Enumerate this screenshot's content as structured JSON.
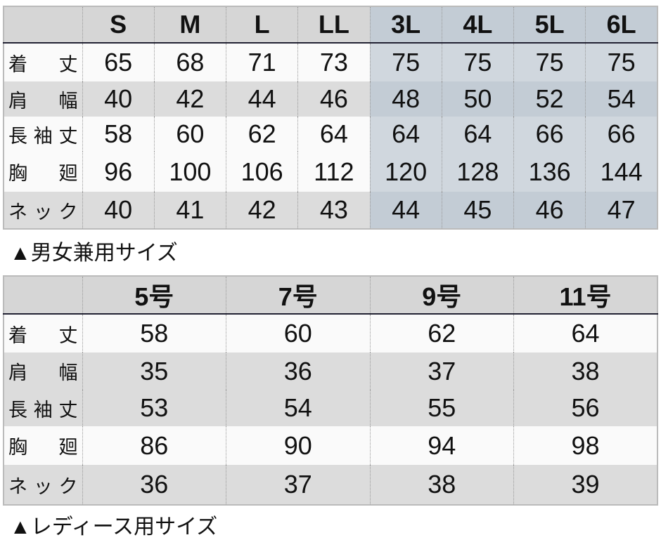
{
  "unisex": {
    "caption": "▲男女兼用サイズ",
    "sizes": [
      "S",
      "M",
      "L",
      "LL",
      "3L",
      "4L",
      "5L",
      "6L"
    ],
    "rows": [
      {
        "label": "着　丈",
        "values": [
          "65",
          "68",
          "71",
          "73",
          "75",
          "75",
          "75",
          "75"
        ]
      },
      {
        "label": "肩　幅",
        "values": [
          "40",
          "42",
          "44",
          "46",
          "48",
          "50",
          "52",
          "54"
        ]
      },
      {
        "label": "長袖丈",
        "values": [
          "58",
          "60",
          "62",
          "64",
          "64",
          "64",
          "66",
          "66"
        ]
      },
      {
        "label": "胸　廻",
        "values": [
          "96",
          "100",
          "106",
          "112",
          "120",
          "128",
          "136",
          "144"
        ]
      },
      {
        "label": "ネック",
        "values": [
          "40",
          "41",
          "42",
          "43",
          "44",
          "45",
          "46",
          "47"
        ]
      }
    ]
  },
  "ladies": {
    "caption": "▲レディース用サイズ",
    "sizes": [
      "5号",
      "7号",
      "9号",
      "11号"
    ],
    "rows": [
      {
        "label": "着　丈",
        "values": [
          "58",
          "60",
          "62",
          "64"
        ]
      },
      {
        "label": "肩　幅",
        "values": [
          "35",
          "36",
          "37",
          "38"
        ]
      },
      {
        "label": "長袖丈",
        "values": [
          "53",
          "54",
          "55",
          "56"
        ]
      },
      {
        "label": "胸　廻",
        "values": [
          "86",
          "90",
          "94",
          "98"
        ]
      },
      {
        "label": "ネック",
        "values": [
          "36",
          "37",
          "38",
          "39"
        ]
      }
    ]
  }
}
